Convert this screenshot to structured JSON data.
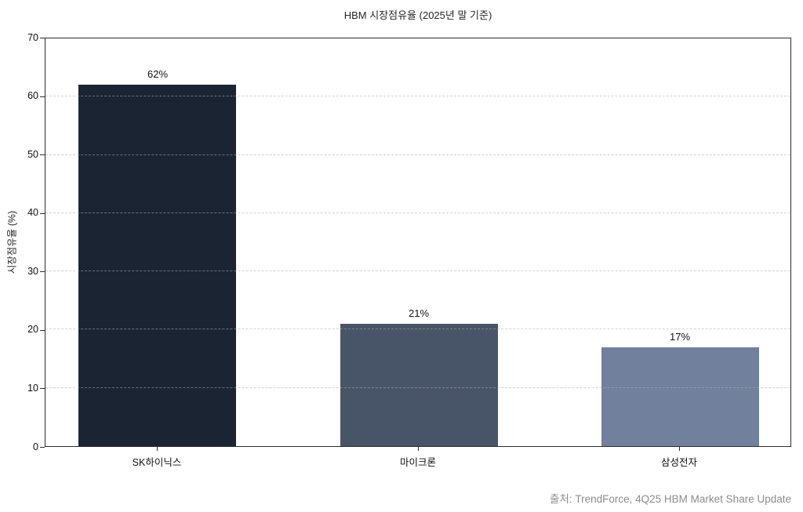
{
  "title": "HBM 시장점유율 (2025년 말 기준)",
  "y_axis_label": "시장점유율 (%)",
  "source": "출처: TrendForce, 4Q25 HBM Market Share Update",
  "chart_data": {
    "type": "bar",
    "title": "HBM 시장점유율 (2025년 말 기준)",
    "categories": [
      "SK하이닉스",
      "마이크론",
      "삼성전자"
    ],
    "values": [
      62,
      21,
      17
    ],
    "value_labels": [
      "62%",
      "21%",
      "17%"
    ],
    "bar_colors": [
      "#1b2433",
      "#485468",
      "#71809c"
    ],
    "xlabel": "",
    "ylabel": "시장점유율 (%)",
    "ylim": [
      0,
      70
    ],
    "yticks": [
      0,
      10,
      20,
      30,
      40,
      50,
      60,
      70
    ],
    "grid": "horizontal-dashed",
    "legend": "none",
    "annotation": "출처: TrendForce, 4Q25 HBM Market Share Update"
  }
}
